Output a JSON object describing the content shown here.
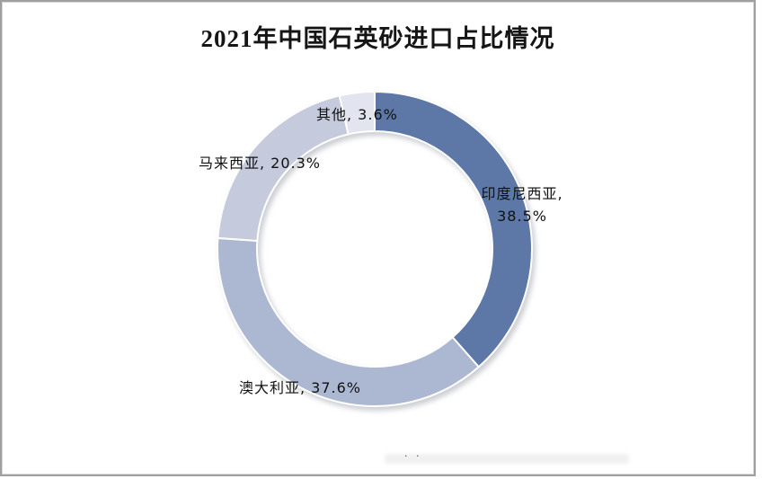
{
  "title": "2021年中国石英砂进口占比情况",
  "chart_data": {
    "type": "pie",
    "subtype": "donut",
    "title": "2021年中国石英砂进口占比情况",
    "categories": [
      "印度尼西亚",
      "澳大利亚",
      "马来西亚",
      "其他"
    ],
    "values": [
      38.5,
      37.6,
      20.3,
      3.6
    ],
    "unit": "%",
    "colors": [
      "#5d78a6",
      "#acb8d1",
      "#c5cbdc",
      "#e2e4ef"
    ],
    "start_angle_deg": 0,
    "direction": "clockwise",
    "inner_radius_ratio": 0.75,
    "legend_position": "none",
    "data_labels": [
      "印度尼西亚, 38.5%",
      "澳大利亚, 37.6%",
      "马来西亚, 20.3%",
      "其他, 3.6%"
    ]
  },
  "labels": {
    "other": "其他, 3.6%",
    "malaysia": "马来西亚, 20.3%",
    "indonesia_line1": "印度尼西亚,",
    "indonesia_line2": "38.5%",
    "australia": "澳大利亚, 37.6%"
  },
  "footer": {
    "faint_marks": "· ·"
  }
}
